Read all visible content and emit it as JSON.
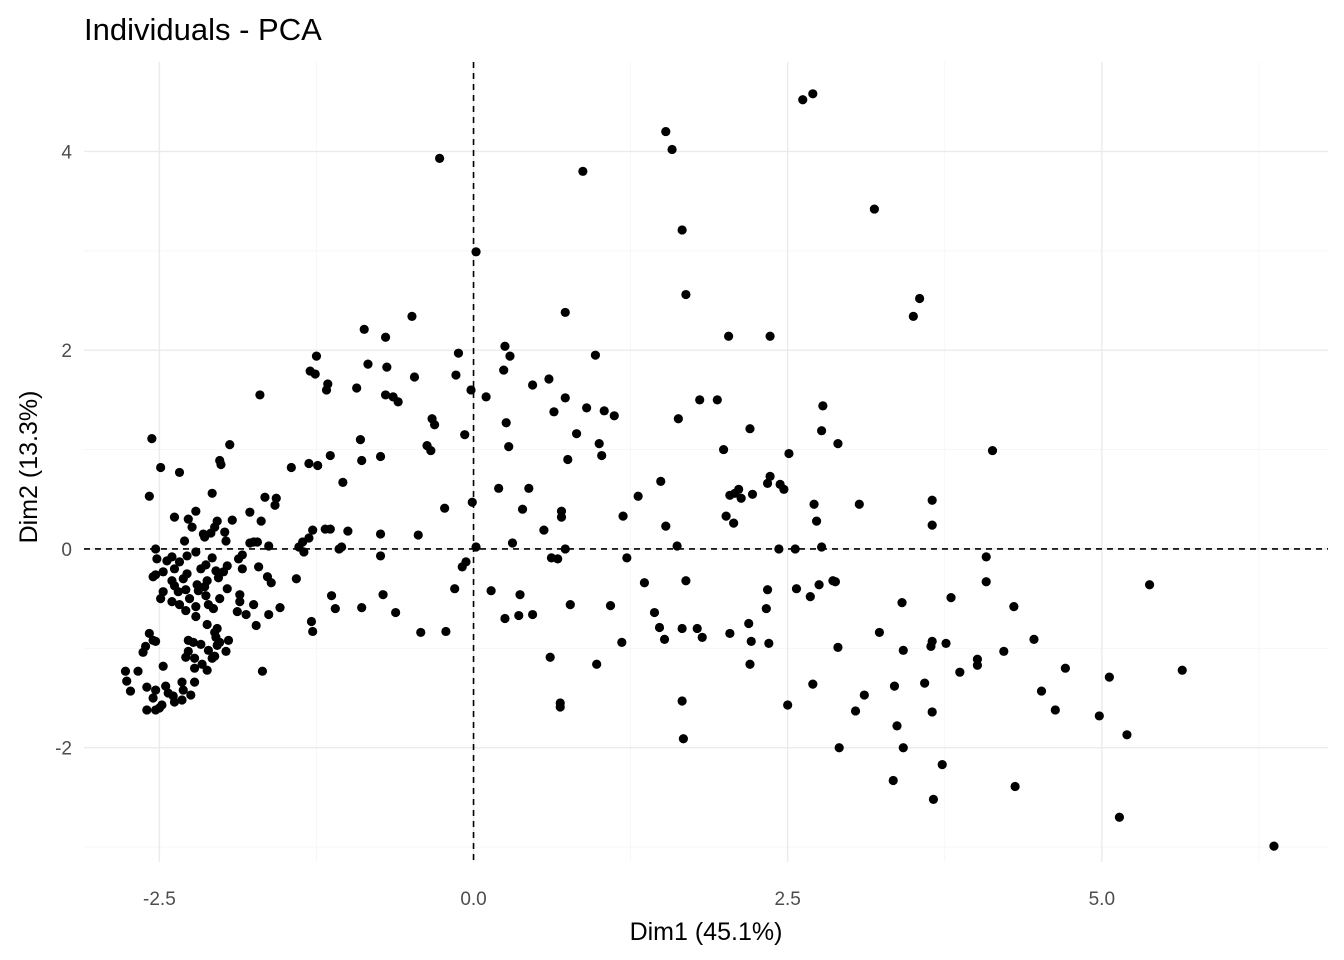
{
  "chart_data": {
    "type": "scatter",
    "title": "Individuals - PCA",
    "xlabel": "Dim1 (45.1%)",
    "ylabel": "Dim2 (13.3%)",
    "xlim": [
      -3.1,
      6.8
    ],
    "ylim": [
      -3.15,
      4.9
    ],
    "x_ticks": [
      -2.5,
      0.0,
      2.5,
      5.0
    ],
    "x_tick_labels": [
      "-2.5",
      "0.0",
      "2.5",
      "5.0"
    ],
    "y_ticks": [
      -2,
      0,
      2,
      4
    ],
    "y_tick_labels": [
      "-2",
      "0",
      "2",
      "4"
    ],
    "grid": true,
    "reference_lines": {
      "x": 0,
      "y": 0,
      "style": "dashed"
    },
    "point_color": "#000000",
    "points": [
      [
        2.62,
        4.52
      ],
      [
        2.7,
        4.58
      ],
      [
        1.53,
        4.2
      ],
      [
        1.58,
        4.02
      ],
      [
        -0.27,
        3.93
      ],
      [
        0.87,
        3.8
      ],
      [
        3.19,
        3.42
      ],
      [
        1.66,
        3.21
      ],
      [
        0.02,
        2.99
      ],
      [
        1.69,
        2.56
      ],
      [
        3.55,
        2.52
      ],
      [
        3.5,
        2.34
      ],
      [
        -0.49,
        2.34
      ],
      [
        0.73,
        2.38
      ],
      [
        -0.87,
        2.21
      ],
      [
        -0.7,
        2.13
      ],
      [
        2.03,
        2.14
      ],
      [
        2.36,
        2.14
      ],
      [
        0.25,
        2.04
      ],
      [
        0.29,
        1.94
      ],
      [
        -1.25,
        1.94
      ],
      [
        0.97,
        1.95
      ],
      [
        -0.12,
        1.97
      ],
      [
        -0.84,
        1.86
      ],
      [
        -0.69,
        1.83
      ],
      [
        -1.3,
        1.79
      ],
      [
        -1.26,
        1.76
      ],
      [
        -0.14,
        1.75
      ],
      [
        -0.47,
        1.73
      ],
      [
        0.24,
        1.8
      ],
      [
        0.6,
        1.71
      ],
      [
        0.47,
        1.65
      ],
      [
        -1.16,
        1.66
      ],
      [
        -1.17,
        1.6
      ],
      [
        -0.93,
        1.62
      ],
      [
        -0.02,
        1.6
      ],
      [
        0.1,
        1.53
      ],
      [
        -0.7,
        1.55
      ],
      [
        -0.64,
        1.53
      ],
      [
        -0.6,
        1.48
      ],
      [
        -1.7,
        1.55
      ],
      [
        0.73,
        1.52
      ],
      [
        0.64,
        1.38
      ],
      [
        0.9,
        1.42
      ],
      [
        1.04,
        1.39
      ],
      [
        1.12,
        1.34
      ],
      [
        1.8,
        1.5
      ],
      [
        1.94,
        1.5
      ],
      [
        2.78,
        1.44
      ],
      [
        -0.33,
        1.31
      ],
      [
        -0.31,
        1.25
      ],
      [
        0.26,
        1.27
      ],
      [
        1.63,
        1.31
      ],
      [
        0.82,
        1.16
      ],
      [
        -0.07,
        1.15
      ],
      [
        2.2,
        1.21
      ],
      [
        2.77,
        1.19
      ],
      [
        0.28,
        1.03
      ],
      [
        1.0,
        1.06
      ],
      [
        2.9,
        1.06
      ],
      [
        -1.94,
        1.05
      ],
      [
        -0.37,
        1.04
      ],
      [
        -0.34,
        0.99
      ],
      [
        1.02,
        0.94
      ],
      [
        1.99,
        1.0
      ],
      [
        2.51,
        0.96
      ],
      [
        4.13,
        0.99
      ],
      [
        -0.9,
        1.1
      ],
      [
        0.75,
        0.9
      ],
      [
        -0.74,
        0.93
      ],
      [
        -2.02,
        0.89
      ],
      [
        -2.01,
        0.85
      ],
      [
        -1.14,
        0.94
      ],
      [
        -1.31,
        0.86
      ],
      [
        -1.45,
        0.82
      ],
      [
        -1.24,
        0.84
      ],
      [
        -0.89,
        0.89
      ],
      [
        -2.49,
        0.82
      ],
      [
        -2.34,
        0.77
      ],
      [
        -1.04,
        0.67
      ],
      [
        -2.56,
        1.11
      ],
      [
        2.36,
        0.73
      ],
      [
        2.34,
        0.66
      ],
      [
        2.44,
        0.65
      ],
      [
        2.47,
        0.6
      ],
      [
        3.07,
        0.45
      ],
      [
        1.49,
        0.68
      ],
      [
        0.44,
        0.61
      ],
      [
        0.2,
        0.61
      ],
      [
        2.11,
        0.6
      ],
      [
        2.04,
        0.54
      ],
      [
        2.08,
        0.56
      ],
      [
        2.13,
        0.51
      ],
      [
        1.31,
        0.53
      ],
      [
        -2.08,
        0.56
      ],
      [
        -1.66,
        0.52
      ],
      [
        -1.57,
        0.51
      ],
      [
        -1.58,
        0.44
      ],
      [
        -2.58,
        0.53
      ],
      [
        2.71,
        0.45
      ],
      [
        3.65,
        0.49
      ],
      [
        -0.23,
        0.41
      ],
      [
        0.39,
        0.4
      ],
      [
        0.7,
        0.38
      ],
      [
        0.7,
        0.32
      ],
      [
        -0.01,
        0.47
      ],
      [
        2.01,
        0.33
      ],
      [
        1.19,
        0.33
      ],
      [
        2.07,
        0.26
      ],
      [
        2.73,
        0.28
      ],
      [
        3.65,
        0.24
      ],
      [
        1.53,
        0.23
      ],
      [
        -2.21,
        0.38
      ],
      [
        -2.38,
        0.32
      ],
      [
        -2.27,
        0.3
      ],
      [
        -1.92,
        0.29
      ],
      [
        -1.78,
        0.37
      ],
      [
        -1.69,
        0.28
      ],
      [
        -1.98,
        0.17
      ],
      [
        -2.06,
        0.22
      ],
      [
        -2.04,
        0.28
      ],
      [
        -2.24,
        0.22
      ],
      [
        -2.15,
        0.15
      ],
      [
        -2.09,
        0.16
      ],
      [
        -2.14,
        0.12
      ],
      [
        -0.74,
        0.15
      ],
      [
        -0.44,
        0.14
      ],
      [
        -1.0,
        0.18
      ],
      [
        -1.28,
        0.19
      ],
      [
        -1.14,
        0.2
      ],
      [
        -1.18,
        0.2
      ],
      [
        -1.31,
        0.11
      ],
      [
        -1.36,
        0.07
      ],
      [
        -1.75,
        0.07
      ],
      [
        -1.39,
        0.02
      ],
      [
        -1.05,
        0.02
      ],
      [
        -1.07,
        0.0
      ],
      [
        -1.35,
        -0.03
      ],
      [
        -1.63,
        0.03
      ],
      [
        -1.97,
        0.08
      ],
      [
        -1.78,
        0.06
      ],
      [
        -1.72,
        0.07
      ],
      [
        -2.3,
        0.08
      ],
      [
        -2.21,
        -0.03
      ],
      [
        -2.34,
        -0.13
      ],
      [
        -2.4,
        -0.08
      ],
      [
        -2.53,
        0.0
      ],
      [
        2.22,
        0.55
      ],
      [
        2.43,
        0.0
      ],
      [
        2.56,
        0.0
      ],
      [
        2.77,
        0.02
      ],
      [
        1.62,
        0.03
      ],
      [
        0.31,
        0.06
      ],
      [
        0.02,
        0.02
      ],
      [
        0.56,
        0.19
      ],
      [
        0.73,
        0.0
      ],
      [
        1.22,
        -0.09
      ],
      [
        0.62,
        -0.09
      ],
      [
        0.67,
        -0.1
      ],
      [
        -0.74,
        -0.07
      ],
      [
        -0.06,
        -0.13
      ],
      [
        -0.09,
        -0.18
      ],
      [
        4.08,
        -0.08
      ],
      [
        -1.84,
        -0.06
      ],
      [
        -1.87,
        -0.1
      ],
      [
        -2.08,
        -0.09
      ],
      [
        -2.28,
        -0.07
      ],
      [
        -2.44,
        -0.12
      ],
      [
        -2.52,
        -0.1
      ],
      [
        -1.96,
        -0.17
      ],
      [
        -1.99,
        -0.23
      ],
      [
        -2.13,
        -0.16
      ],
      [
        -2.05,
        -0.22
      ],
      [
        -2.17,
        -0.2
      ],
      [
        -2.28,
        -0.25
      ],
      [
        -2.38,
        -0.2
      ],
      [
        -1.71,
        -0.18
      ],
      [
        -1.84,
        -0.2
      ],
      [
        -2.03,
        -0.29
      ],
      [
        -2.12,
        -0.32
      ],
      [
        -2.47,
        -0.23
      ],
      [
        -2.53,
        -0.26
      ],
      [
        -2.55,
        -0.28
      ],
      [
        -2.4,
        -0.32
      ],
      [
        -2.31,
        -0.3
      ],
      [
        -1.64,
        -0.28
      ],
      [
        -1.41,
        -0.3
      ],
      [
        -1.61,
        -0.34
      ],
      [
        -2.2,
        -0.36
      ],
      [
        -2.14,
        -0.38
      ],
      [
        -2.38,
        -0.37
      ],
      [
        -2.35,
        -0.43
      ],
      [
        -2.29,
        -0.41
      ],
      [
        -2.19,
        -0.42
      ],
      [
        -2.13,
        -0.47
      ],
      [
        -1.96,
        -0.4
      ],
      [
        -1.86,
        -0.46
      ],
      [
        -2.47,
        -0.43
      ],
      [
        -2.49,
        -0.5
      ],
      [
        -2.4,
        -0.53
      ],
      [
        -2.34,
        -0.56
      ],
      [
        -2.26,
        -0.5
      ],
      [
        -2.21,
        -0.58
      ],
      [
        -2.11,
        -0.56
      ],
      [
        -2.07,
        -0.6
      ],
      [
        -2.02,
        -0.5
      ],
      [
        -1.86,
        -0.53
      ],
      [
        -1.75,
        -0.56
      ],
      [
        -1.88,
        -0.63
      ],
      [
        -2.29,
        -0.62
      ],
      [
        -2.21,
        -0.68
      ],
      [
        -1.81,
        -0.66
      ],
      [
        -1.63,
        -0.66
      ],
      [
        -1.54,
        -0.59
      ],
      [
        -2.12,
        -0.76
      ],
      [
        -2.04,
        -0.8
      ],
      [
        -1.73,
        -0.77
      ],
      [
        -2.06,
        -0.84
      ],
      [
        -2.05,
        -0.89
      ],
      [
        -2.23,
        -0.94
      ],
      [
        -2.17,
        -0.96
      ],
      [
        -2.27,
        -0.92
      ],
      [
        -2.27,
        -1.03
      ],
      [
        -2.22,
        -1.1
      ],
      [
        -2.29,
        -1.09
      ],
      [
        -2.47,
        -1.18
      ],
      [
        -2.53,
        -0.93
      ],
      [
        -2.55,
        -0.92
      ],
      [
        -2.61,
        -0.98
      ],
      [
        -2.63,
        -1.04
      ],
      [
        -2.58,
        -0.85
      ],
      [
        -2.67,
        -1.23
      ],
      [
        -2.77,
        -1.23
      ],
      [
        -2.76,
        -1.33
      ],
      [
        -2.73,
        -1.43
      ],
      [
        -2.6,
        -1.39
      ],
      [
        -2.53,
        -1.42
      ],
      [
        -2.55,
        -1.5
      ],
      [
        -2.5,
        -1.6
      ],
      [
        -2.48,
        -1.57
      ],
      [
        -2.43,
        -1.45
      ],
      [
        -2.39,
        -1.48
      ],
      [
        -2.32,
        -1.52
      ],
      [
        -2.31,
        -1.42
      ],
      [
        -2.25,
        -1.47
      ],
      [
        -2.38,
        -1.54
      ],
      [
        -2.6,
        -1.62
      ],
      [
        -2.53,
        -1.62
      ],
      [
        -2.12,
        -1.22
      ],
      [
        -2.16,
        -1.16
      ],
      [
        -2.22,
        -1.34
      ],
      [
        -2.32,
        -1.34
      ],
      [
        -2.22,
        -1.2
      ],
      [
        -2.45,
        -1.38
      ],
      [
        -1.68,
        -1.23
      ],
      [
        -1.95,
        -0.92
      ],
      [
        -1.97,
        -1.03
      ],
      [
        -2.02,
        -0.94
      ],
      [
        -2.04,
        -0.97
      ],
      [
        -2.11,
        -1.02
      ],
      [
        -2.06,
        -1.08
      ],
      [
        -2.08,
        -1.1
      ],
      [
        -1.29,
        -0.73
      ],
      [
        -1.28,
        -0.83
      ],
      [
        -1.13,
        -0.47
      ],
      [
        -1.1,
        -0.6
      ],
      [
        -0.89,
        -0.59
      ],
      [
        -0.62,
        -0.64
      ],
      [
        -0.72,
        -0.46
      ],
      [
        -0.42,
        -0.84
      ],
      [
        -0.22,
        -0.83
      ],
      [
        -0.15,
        -0.4
      ],
      [
        0.14,
        -0.42
      ],
      [
        0.25,
        -0.7
      ],
      [
        0.37,
        -0.46
      ],
      [
        0.36,
        -0.67
      ],
      [
        0.47,
        -0.66
      ],
      [
        0.61,
        -1.09
      ],
      [
        0.69,
        -1.55
      ],
      [
        0.69,
        -1.59
      ],
      [
        0.77,
        -0.56
      ],
      [
        0.98,
        -1.16
      ],
      [
        1.09,
        -0.57
      ],
      [
        1.18,
        -0.94
      ],
      [
        1.36,
        -0.34
      ],
      [
        1.44,
        -0.64
      ],
      [
        1.48,
        -0.79
      ],
      [
        1.52,
        -0.91
      ],
      [
        1.66,
        -0.8
      ],
      [
        1.66,
        -1.53
      ],
      [
        1.67,
        -1.91
      ],
      [
        1.69,
        -0.32
      ],
      [
        1.78,
        -0.8
      ],
      [
        1.82,
        -0.89
      ],
      [
        2.04,
        -0.85
      ],
      [
        2.19,
        -0.75
      ],
      [
        2.21,
        -0.93
      ],
      [
        2.2,
        -1.16
      ],
      [
        2.33,
        -0.6
      ],
      [
        2.34,
        -0.41
      ],
      [
        2.35,
        -0.95
      ],
      [
        2.5,
        -1.57
      ],
      [
        2.57,
        -0.4
      ],
      [
        2.68,
        -0.48
      ],
      [
        2.7,
        -1.36
      ],
      [
        2.75,
        -0.36
      ],
      [
        2.86,
        -0.32
      ],
      [
        2.88,
        -0.33
      ],
      [
        2.9,
        -0.99
      ],
      [
        2.91,
        -2.0
      ],
      [
        3.04,
        -1.63
      ],
      [
        3.11,
        -1.47
      ],
      [
        3.23,
        -0.84
      ],
      [
        3.35,
        -1.38
      ],
      [
        3.37,
        -1.78
      ],
      [
        3.34,
        -2.33
      ],
      [
        3.41,
        -0.54
      ],
      [
        3.42,
        -1.02
      ],
      [
        3.42,
        -2.0
      ],
      [
        3.59,
        -1.35
      ],
      [
        3.64,
        -0.98
      ],
      [
        3.65,
        -0.93
      ],
      [
        3.65,
        -1.64
      ],
      [
        3.66,
        -2.52
      ],
      [
        3.73,
        -2.17
      ],
      [
        3.76,
        -0.95
      ],
      [
        3.8,
        -0.49
      ],
      [
        3.87,
        -1.24
      ],
      [
        4.01,
        -1.11
      ],
      [
        4.01,
        -1.17
      ],
      [
        4.08,
        -0.33
      ],
      [
        4.22,
        -1.03
      ],
      [
        4.3,
        -0.58
      ],
      [
        4.31,
        -2.39
      ],
      [
        4.46,
        -0.91
      ],
      [
        4.52,
        -1.43
      ],
      [
        4.63,
        -1.62
      ],
      [
        4.71,
        -1.2
      ],
      [
        4.98,
        -1.68
      ],
      [
        5.06,
        -1.29
      ],
      [
        5.14,
        -2.7
      ],
      [
        5.2,
        -1.87
      ],
      [
        5.38,
        -0.36
      ],
      [
        5.64,
        -1.22
      ],
      [
        6.37,
        -2.99
      ]
    ]
  }
}
